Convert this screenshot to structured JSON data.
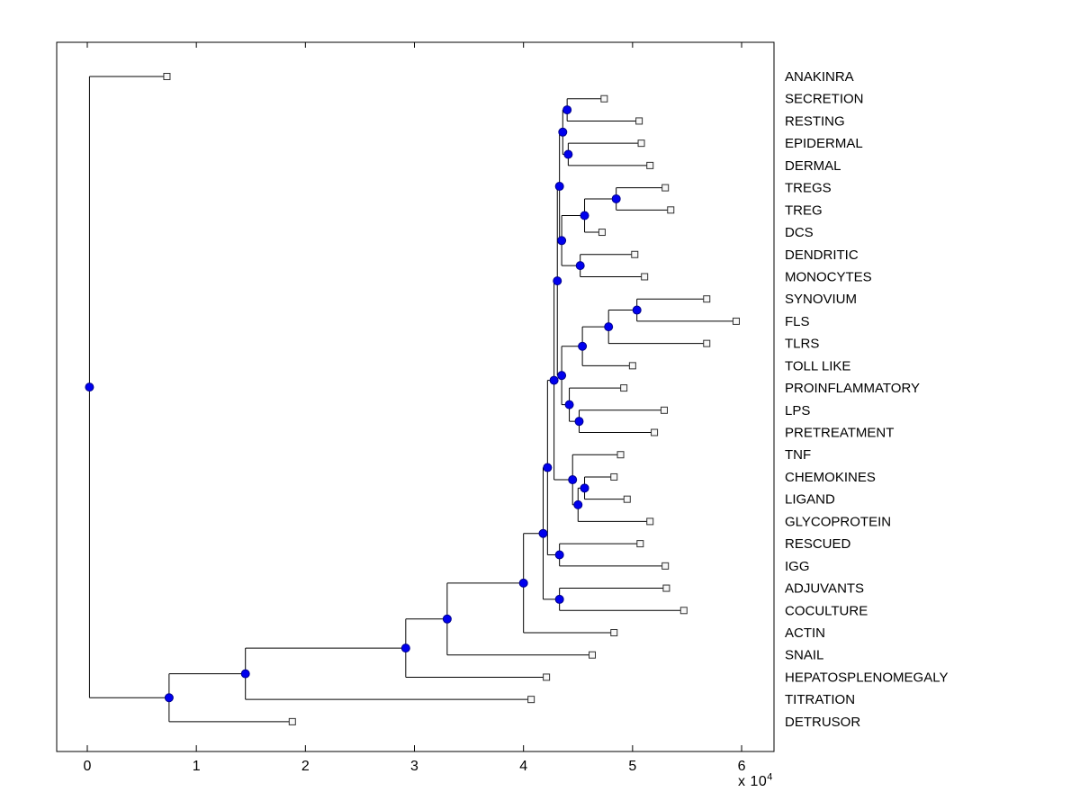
{
  "figure": {
    "background": "#ffffff",
    "axis_color": "#000000"
  },
  "chart_data": {
    "type": "dendrogram",
    "title": "",
    "xlabel": "",
    "ylabel": "",
    "orientation": "left-to-right",
    "legend": "none",
    "grid": false,
    "x_axis": {
      "ticks": [
        "0",
        "1",
        "2",
        "3",
        "4",
        "5",
        "6"
      ],
      "tick_values": [
        0,
        10000,
        20000,
        30000,
        40000,
        50000,
        60000
      ],
      "multiplier_prefix": "x 10",
      "multiplier_exponent": "4",
      "xlim": [
        -2800,
        63000
      ]
    },
    "style": {
      "line_color": "#000000",
      "internal_node_fill": "#0000ee",
      "internal_node_stroke": "#00008b",
      "leaf_marker_fill": "#f8f8f8",
      "leaf_marker_stroke": "#303030",
      "internal_marker": "filled-circle",
      "leaf_marker": "open-square"
    },
    "leaves": [
      {
        "label": "ANAKINRA",
        "x": 7300
      },
      {
        "label": "SECRETION",
        "x": 47400
      },
      {
        "label": "RESTING",
        "x": 50600
      },
      {
        "label": "EPIDERMAL",
        "x": 50800
      },
      {
        "label": "DERMAL",
        "x": 51600
      },
      {
        "label": "TREGS",
        "x": 53000
      },
      {
        "label": "TREG",
        "x": 53500
      },
      {
        "label": "DCS",
        "x": 47200
      },
      {
        "label": "DENDRITIC",
        "x": 50200
      },
      {
        "label": "MONOCYTES",
        "x": 51100
      },
      {
        "label": "SYNOVIUM",
        "x": 56800
      },
      {
        "label": "FLS",
        "x": 59500
      },
      {
        "label": "TLRS",
        "x": 56800
      },
      {
        "label": "TOLL LIKE",
        "x": 50000
      },
      {
        "label": "PROINFLAMMATORY",
        "x": 49200
      },
      {
        "label": "LPS",
        "x": 52900
      },
      {
        "label": "PRETREATMENT",
        "x": 52000
      },
      {
        "label": "TNF",
        "x": 48900
      },
      {
        "label": "CHEMOKINES",
        "x": 48300
      },
      {
        "label": "LIGAND",
        "x": 49500
      },
      {
        "label": "GLYCOPROTEIN",
        "x": 51600
      },
      {
        "label": "RESCUED",
        "x": 50700
      },
      {
        "label": "IGG",
        "x": 53000
      },
      {
        "label": "ADJUVANTS",
        "x": 53100
      },
      {
        "label": "COCULTURE",
        "x": 54700
      },
      {
        "label": "ACTIN",
        "x": 48300
      },
      {
        "label": "SNAIL",
        "x": 46300
      },
      {
        "label": "HEPATOSPLENOMEGALY",
        "x": 42100
      },
      {
        "label": "TITRATION",
        "x": 40700
      },
      {
        "label": "DETRUSOR",
        "x": 18800
      }
    ],
    "internal_nodes": [
      {
        "id": "t1",
        "x": 44000,
        "children": [
          "SECRETION",
          "RESTING"
        ]
      },
      {
        "id": "t2",
        "x": 44100,
        "children": [
          "EPIDERMAL",
          "DERMAL"
        ]
      },
      {
        "id": "t3",
        "x": 43600,
        "children": [
          "t1",
          "t2"
        ]
      },
      {
        "id": "m1",
        "x": 48500,
        "children": [
          "TREGS",
          "TREG"
        ]
      },
      {
        "id": "m2",
        "x": 45600,
        "children": [
          "m1",
          "DCS"
        ]
      },
      {
        "id": "m3",
        "x": 45200,
        "children": [
          "DENDRITIC",
          "MONOCYTES"
        ]
      },
      {
        "id": "m4",
        "x": 43500,
        "children": [
          "m2",
          "m3"
        ]
      },
      {
        "id": "u1",
        "x": 43300,
        "children": [
          "t3",
          "m4"
        ]
      },
      {
        "id": "s1",
        "x": 50400,
        "children": [
          "SYNOVIUM",
          "FLS"
        ]
      },
      {
        "id": "s2",
        "x": 47800,
        "children": [
          "s1",
          "TLRS"
        ]
      },
      {
        "id": "s3",
        "x": 45400,
        "children": [
          "s2",
          "TOLL LIKE"
        ]
      },
      {
        "id": "l1",
        "x": 45100,
        "children": [
          "LPS",
          "PRETREATMENT"
        ]
      },
      {
        "id": "p1",
        "x": 44200,
        "children": [
          "PROINFLAMMATORY",
          "l1"
        ]
      },
      {
        "id": "w1",
        "x": 43500,
        "children": [
          "s3",
          "p1"
        ]
      },
      {
        "id": "u2",
        "x": 43100,
        "children": [
          "u1",
          "w1"
        ]
      },
      {
        "id": "g1",
        "x": 45600,
        "children": [
          "CHEMOKINES",
          "LIGAND"
        ]
      },
      {
        "id": "g2",
        "x": 45000,
        "children": [
          "g1",
          "GLYCOPROTEIN"
        ]
      },
      {
        "id": "g3",
        "x": 44500,
        "children": [
          "TNF",
          "g2"
        ]
      },
      {
        "id": "v1",
        "x": 42800,
        "children": [
          "u2",
          "g3"
        ]
      },
      {
        "id": "r1",
        "x": 43300,
        "children": [
          "RESCUED",
          "IGG"
        ]
      },
      {
        "id": "r2",
        "x": 42200,
        "children": [
          "v1",
          "r1"
        ]
      },
      {
        "id": "h1",
        "x": 43300,
        "children": [
          "ADJUVANTS",
          "COCULTURE"
        ]
      },
      {
        "id": "f1",
        "x": 41800,
        "children": [
          "r2",
          "h1"
        ]
      },
      {
        "id": "e1",
        "x": 40000,
        "children": [
          "f1",
          "ACTIN"
        ]
      },
      {
        "id": "d1",
        "x": 33000,
        "children": [
          "e1",
          "SNAIL"
        ]
      },
      {
        "id": "c1",
        "x": 29200,
        "children": [
          "d1",
          "HEPATOSPLENOMEGALY"
        ]
      },
      {
        "id": "b1",
        "x": 14500,
        "children": [
          "c1",
          "TITRATION"
        ]
      },
      {
        "id": "a1",
        "x": 7500,
        "children": [
          "b1",
          "DETRUSOR"
        ]
      },
      {
        "id": "root",
        "x": 200,
        "children": [
          "ANAKINRA",
          "a1"
        ]
      }
    ]
  }
}
